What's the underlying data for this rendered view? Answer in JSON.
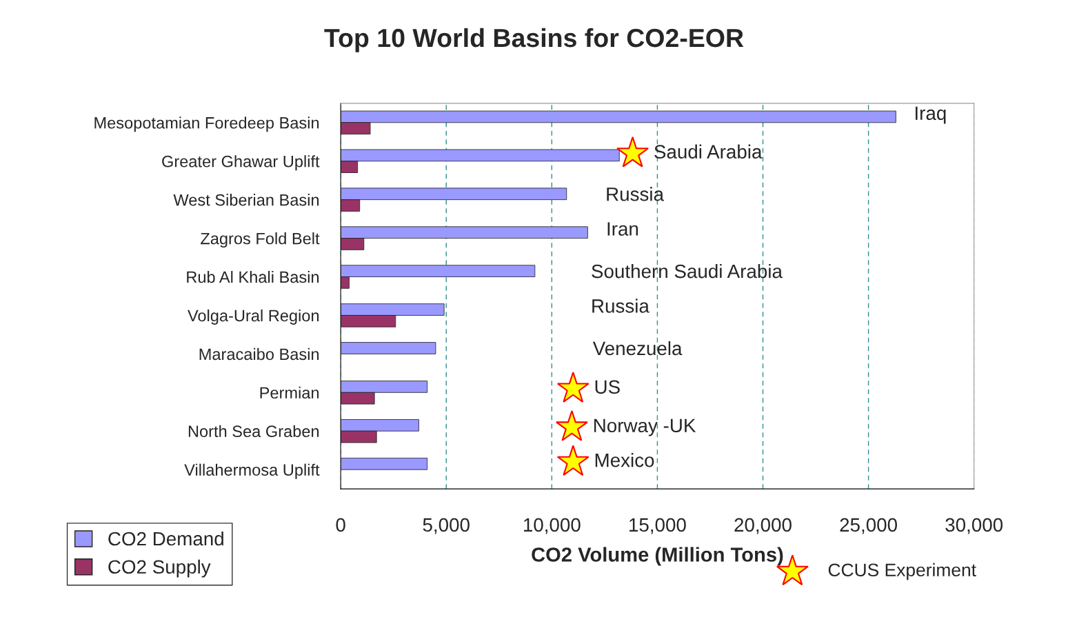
{
  "chart_data": {
    "type": "bar",
    "orientation": "horizontal",
    "title": "Top 10 World Basins for CO2-EOR",
    "xlabel": "CO2 Volume (Million Tons)",
    "categories": [
      "Mesopotamian Foredeep Basin",
      "Greater Ghawar Uplift",
      "West Siberian Basin",
      "Zagros Fold Belt",
      "Rub Al Khali Basin",
      "Volga-Ural Region",
      "Maracaibo Basin",
      "Permian",
      "North Sea Graben",
      "Villahermosa Uplift"
    ],
    "series": [
      {
        "name": "CO2 Demand",
        "color": "#9999ff",
        "values": [
          26300,
          13200,
          10700,
          11700,
          9200,
          4900,
          4500,
          4100,
          3700,
          4100
        ]
      },
      {
        "name": "CO2 Supply",
        "color": "#993366",
        "values": [
          1400,
          800,
          900,
          1100,
          400,
          2600,
          null,
          1600,
          1700,
          null
        ]
      }
    ],
    "xlim": [
      0,
      30000
    ],
    "xticks": [
      {
        "value": 0,
        "label": "0"
      },
      {
        "value": 5000,
        "label": "5,000"
      },
      {
        "value": 10000,
        "label": "10,000"
      },
      {
        "value": 15000,
        "label": "15,000"
      },
      {
        "value": 20000,
        "label": "20,000"
      },
      {
        "value": 25000,
        "label": "25,000"
      },
      {
        "value": 30000,
        "label": "30,000"
      }
    ],
    "grid": "x",
    "legend": "bottom left",
    "annotations": [
      "Iraq",
      "Saudi Arabia",
      "Russia",
      "Iran",
      "Southern Saudi Arabia",
      "Russia",
      "Venezuela",
      "US",
      "Norway -UK",
      "Mexico",
      "CCUS Experiment"
    ]
  }
}
